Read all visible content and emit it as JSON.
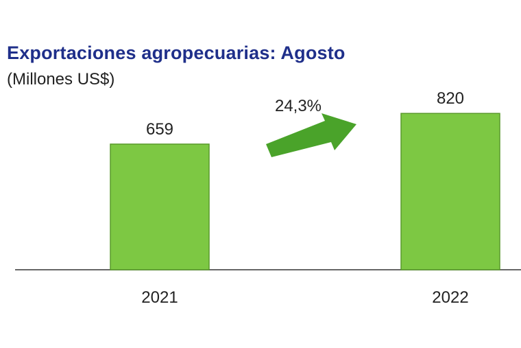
{
  "chart_data": {
    "type": "bar",
    "title": "Exportaciones agropecuarias: Agosto",
    "subtitle": "(Millones US$)",
    "categories": [
      "2021",
      "2022"
    ],
    "values": [
      659,
      820
    ],
    "data_labels": [
      "659",
      "820"
    ],
    "ylim": [
      0,
      900
    ],
    "annotation": "24,3%",
    "grid": false,
    "bar_color": "#7dc843",
    "bar_stroke": "#5a9a2c",
    "arrow_color": "#4aa32a",
    "title_color": "#1f2f8a"
  }
}
